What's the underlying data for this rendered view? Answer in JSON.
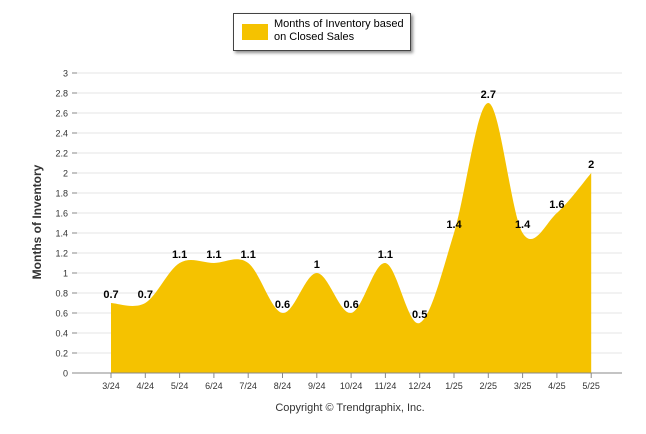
{
  "colors": {
    "series": "#f5c200",
    "grid": "#e6e6e6",
    "axis": "#888888",
    "text": "#333333"
  },
  "legend": {
    "label": "Months of Inventory based on Closed Sales"
  },
  "footer": {
    "copyright": "Copyright © Trendgraphix, Inc."
  },
  "chart_data": {
    "type": "area",
    "ylabel": "Months of Inventory",
    "xlabel": "",
    "ylim": [
      0,
      3
    ],
    "yticks": [
      0,
      0.2,
      0.4,
      0.6,
      0.8,
      1,
      1.2,
      1.4,
      1.6,
      1.8,
      2,
      2.2,
      2.4,
      2.6,
      2.8,
      3
    ],
    "ytick_labels": [
      "0",
      "0.2",
      "0.4",
      "0.6",
      "0.8",
      "1",
      "1.2",
      "1.4",
      "1.6",
      "1.8",
      "2",
      "2.2",
      "2.4",
      "2.6",
      "2.8",
      "3"
    ],
    "categories": [
      "3/24",
      "4/24",
      "5/24",
      "6/24",
      "7/24",
      "8/24",
      "9/24",
      "10/24",
      "11/24",
      "12/24",
      "1/25",
      "2/25",
      "3/25",
      "4/25",
      "5/25"
    ],
    "series": [
      {
        "name": "Months of Inventory based on Closed Sales",
        "values": [
          0.7,
          0.7,
          1.1,
          1.1,
          1.1,
          0.6,
          1,
          0.6,
          1.1,
          0.5,
          1.4,
          2.7,
          1.4,
          1.6,
          2
        ],
        "data_labels": [
          "0.7",
          "0.7",
          "1.1",
          "1.1",
          "1.1",
          "0.6",
          "1",
          "0.6",
          "1.1",
          "0.5",
          "1.4",
          "2.7",
          "1.4",
          "1.6",
          "2"
        ]
      }
    ],
    "grid": true,
    "legend_position": "top-center"
  }
}
